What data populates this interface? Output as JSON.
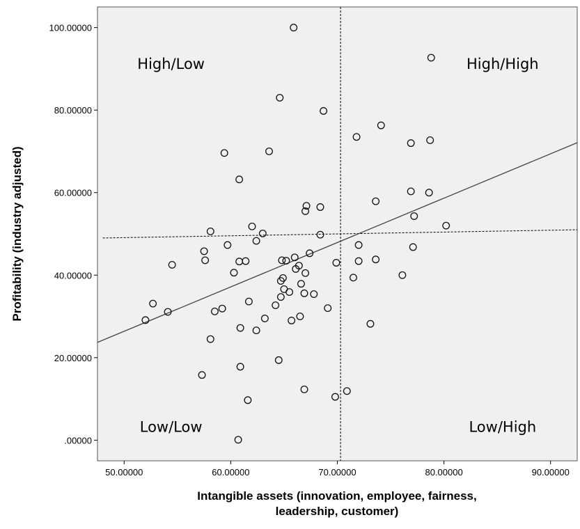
{
  "chart_data": {
    "type": "scatter",
    "xlabel_lines": [
      "Intangible assets (innovation, employee, fairness,",
      "leadership, customer)"
    ],
    "ylabel": "Profitability (industry adjusted)",
    "xlim": [
      47.5,
      92.5
    ],
    "ylim": [
      -5,
      105
    ],
    "x_ticks": [
      50,
      60,
      70,
      80,
      90
    ],
    "x_tick_labels": [
      "50.00000",
      "60.00000",
      "70.00000",
      "80.00000",
      "90.00000"
    ],
    "y_ticks": [
      0,
      20,
      40,
      60,
      80,
      100
    ],
    "y_tick_labels": [
      ".00000",
      "20.00000",
      "40.00000",
      "60.00000",
      "80.00000",
      "100.00000"
    ],
    "grid": false,
    "quadrant_labels": [
      {
        "text": "High/Low",
        "x": 54.4,
        "y": 90
      },
      {
        "text": "High/High",
        "x": 85.5,
        "y": 90
      },
      {
        "text": "Low/Low",
        "x": 54.4,
        "y": 2
      },
      {
        "text": "Low/High",
        "x": 85.5,
        "y": 2
      }
    ],
    "fit_line": {
      "x": [
        47.5,
        92.5
      ],
      "y": [
        23.7,
        72.1
      ]
    },
    "reference_lines": {
      "vertical_x": 70.3,
      "horizontal": {
        "x": [
          48.0,
          92.5
        ],
        "y": [
          49.0,
          51.0
        ]
      }
    },
    "points": [
      [
        65.9,
        100.0
      ],
      [
        78.8,
        92.7
      ],
      [
        64.6,
        83.0
      ],
      [
        68.7,
        79.8
      ],
      [
        74.1,
        76.3
      ],
      [
        71.8,
        73.5
      ],
      [
        76.9,
        72.0
      ],
      [
        78.7,
        72.7
      ],
      [
        59.4,
        69.6
      ],
      [
        63.6,
        70.0
      ],
      [
        60.8,
        63.2
      ],
      [
        76.9,
        60.3
      ],
      [
        78.6,
        60.0
      ],
      [
        73.6,
        57.9
      ],
      [
        67.1,
        56.8
      ],
      [
        68.4,
        56.5
      ],
      [
        67.0,
        55.5
      ],
      [
        77.2,
        54.3
      ],
      [
        80.2,
        52.0
      ],
      [
        62.0,
        51.8
      ],
      [
        58.1,
        50.6
      ],
      [
        63.0,
        50.1
      ],
      [
        68.4,
        49.8
      ],
      [
        62.4,
        48.3
      ],
      [
        59.7,
        47.3
      ],
      [
        72.0,
        47.3
      ],
      [
        77.1,
        46.8
      ],
      [
        57.5,
        45.8
      ],
      [
        67.4,
        45.3
      ],
      [
        66.0,
        44.3
      ],
      [
        64.8,
        43.6
      ],
      [
        65.2,
        43.5
      ],
      [
        61.4,
        43.4
      ],
      [
        60.8,
        43.3
      ],
      [
        57.6,
        43.6
      ],
      [
        69.9,
        43.0
      ],
      [
        72.0,
        43.4
      ],
      [
        73.6,
        43.8
      ],
      [
        66.4,
        42.3
      ],
      [
        66.1,
        41.5
      ],
      [
        54.5,
        42.5
      ],
      [
        60.3,
        40.6
      ],
      [
        67.0,
        40.5
      ],
      [
        76.1,
        40.0
      ],
      [
        71.5,
        39.4
      ],
      [
        64.9,
        39.3
      ],
      [
        64.7,
        38.6
      ],
      [
        66.6,
        37.9
      ],
      [
        65.0,
        36.6
      ],
      [
        65.5,
        35.9
      ],
      [
        66.9,
        35.6
      ],
      [
        67.8,
        35.4
      ],
      [
        64.7,
        34.7
      ],
      [
        61.7,
        33.6
      ],
      [
        64.2,
        32.7
      ],
      [
        52.7,
        33.1
      ],
      [
        69.1,
        32.0
      ],
      [
        59.2,
        31.9
      ],
      [
        58.5,
        31.2
      ],
      [
        54.1,
        31.1
      ],
      [
        63.2,
        29.5
      ],
      [
        66.5,
        30.0
      ],
      [
        65.7,
        29.0
      ],
      [
        52.0,
        29.1
      ],
      [
        73.1,
        28.2
      ],
      [
        60.9,
        27.2
      ],
      [
        62.4,
        26.6
      ],
      [
        58.1,
        24.5
      ],
      [
        64.5,
        19.4
      ],
      [
        60.9,
        17.8
      ],
      [
        57.3,
        15.8
      ],
      [
        66.9,
        12.3
      ],
      [
        70.9,
        11.9
      ],
      [
        69.8,
        10.5
      ],
      [
        61.6,
        9.7
      ],
      [
        60.7,
        0.1
      ]
    ]
  }
}
